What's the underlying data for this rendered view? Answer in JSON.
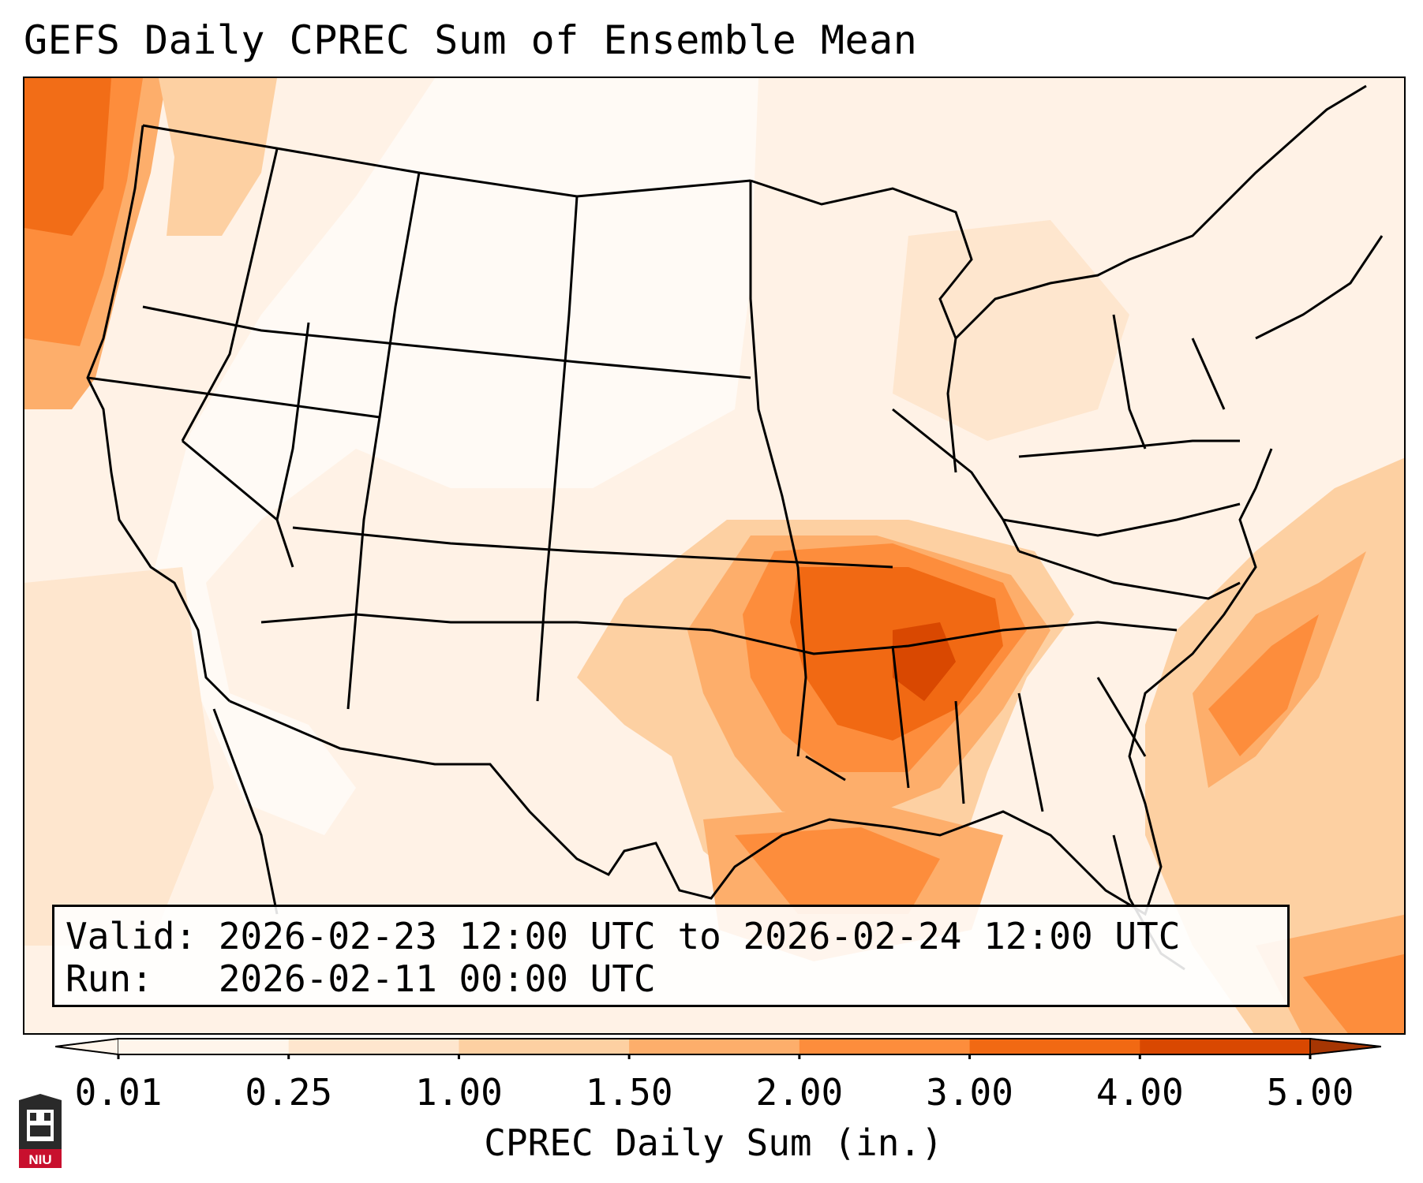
{
  "title": "GEFS Daily CPREC Sum of Ensemble Mean",
  "info": {
    "valid_line": "Valid: 2026-02-23 12:00 UTC to 2026-02-24 12:00 UTC",
    "run_line": "Run:   2026-02-11 00:00 UTC"
  },
  "colorbar": {
    "label": "CPREC Daily Sum (in.)",
    "ticks": [
      "0.01",
      "0.25",
      "1.00",
      "1.50",
      "2.00",
      "3.00",
      "4.00",
      "5.00"
    ],
    "colors": [
      "#fff5eb",
      "#fee6ce",
      "#fdd0a2",
      "#fdae6b",
      "#fd8d3c",
      "#f16913",
      "#d94801",
      "#a63603"
    ],
    "extend": "both"
  },
  "logo": {
    "text": "NIU",
    "icon": "niu-building-icon"
  },
  "colors": {
    "background": "#fff2e6",
    "light": "#fee6ce",
    "medium": "#fdd0a2",
    "orange": "#fdae6b",
    "strong": "#fd8d3c",
    "deep": "#f16913",
    "darkest": "#d94801",
    "state_lines": "#000000"
  }
}
